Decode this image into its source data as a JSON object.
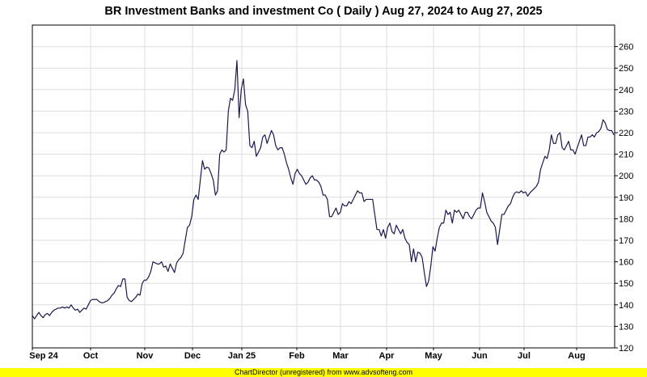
{
  "chart_data": {
    "type": "line",
    "title": "BR Investment Banks and investment Co ( Daily ) Aug 27, 2024 to Aug 27, 2025",
    "x_tick_labels": [
      "Sep 24",
      "Oct",
      "Nov",
      "Dec",
      "Jan 25",
      "Feb",
      "Mar",
      "Apr",
      "May",
      "Jun",
      "Jul",
      "Aug"
    ],
    "y_ticks": [
      120,
      130,
      140,
      150,
      160,
      170,
      180,
      190,
      200,
      210,
      220,
      230,
      240,
      250,
      260
    ],
    "ylim": [
      120,
      270
    ],
    "grid": true,
    "series": [
      {
        "color": "#1a1a4e",
        "values": [
          135,
          133.5,
          135,
          136.5,
          135,
          134,
          135.5,
          136,
          135,
          136.5,
          137.5,
          138,
          138.5,
          138.5,
          139,
          138.5,
          139,
          138.5,
          140,
          138.5,
          137.5,
          138,
          136.5,
          137.5,
          138.5,
          138,
          140,
          142,
          142.5,
          142.5,
          142.5,
          141.5,
          141,
          141,
          141.5,
          142,
          143,
          144.5,
          145.5,
          147.5,
          149,
          148.5,
          152,
          152,
          143.5,
          142,
          141.5,
          142.5,
          143.5,
          145,
          144.5,
          150,
          151.5,
          151.5,
          153,
          155.5,
          160,
          159.5,
          159,
          159,
          160,
          157.5,
          158,
          155.5,
          159,
          157,
          155,
          159.5,
          161,
          162,
          164,
          170,
          176,
          177,
          181,
          189,
          191,
          189,
          198,
          207,
          203,
          204,
          203.5,
          201,
          198,
          191,
          193,
          210,
          212,
          211,
          212,
          230,
          236,
          235,
          240,
          253.5,
          227,
          240,
          245,
          233,
          230,
          214,
          213,
          216,
          209,
          211,
          213,
          218,
          219,
          215,
          218,
          221,
          219,
          214,
          212,
          213,
          213,
          210,
          206,
          203,
          199,
          196,
          201,
          203,
          201,
          200,
          198,
          196,
          197,
          199,
          200,
          198,
          198,
          197,
          195,
          191,
          191,
          189,
          181,
          181,
          183,
          185,
          182,
          183,
          187,
          186,
          186,
          188,
          187,
          189,
          191,
          193,
          192,
          192,
          188,
          189,
          189,
          189,
          189,
          182,
          175,
          175,
          172,
          175,
          171,
          176,
          178,
          174,
          173,
          177,
          175,
          173,
          175,
          171,
          169,
          168,
          160,
          166,
          160,
          164.5,
          164,
          162,
          155,
          148.5,
          151,
          158,
          167,
          165,
          171,
          176,
          178,
          178,
          184,
          182,
          183,
          178,
          184,
          183,
          184,
          182,
          180,
          183,
          183,
          181,
          180,
          182,
          184,
          185,
          185,
          192,
          188,
          183,
          181,
          179,
          178,
          176,
          168,
          175,
          182,
          182,
          184,
          186,
          187,
          190,
          192,
          192.5,
          192,
          193,
          192,
          192.5,
          190.5,
          192,
          193,
          194,
          195,
          197,
          203,
          206,
          209,
          208,
          212,
          219,
          215,
          215,
          219,
          220,
          213,
          212,
          214,
          216,
          212,
          212,
          210,
          213,
          216,
          219,
          214,
          214,
          218,
          218,
          219,
          218,
          220,
          220.5,
          222,
          226,
          224.5,
          221.5,
          221,
          221,
          219
        ]
      }
    ]
  },
  "footer": {
    "text": "ChartDirector (unregistered) from www.advsofteng.com"
  }
}
